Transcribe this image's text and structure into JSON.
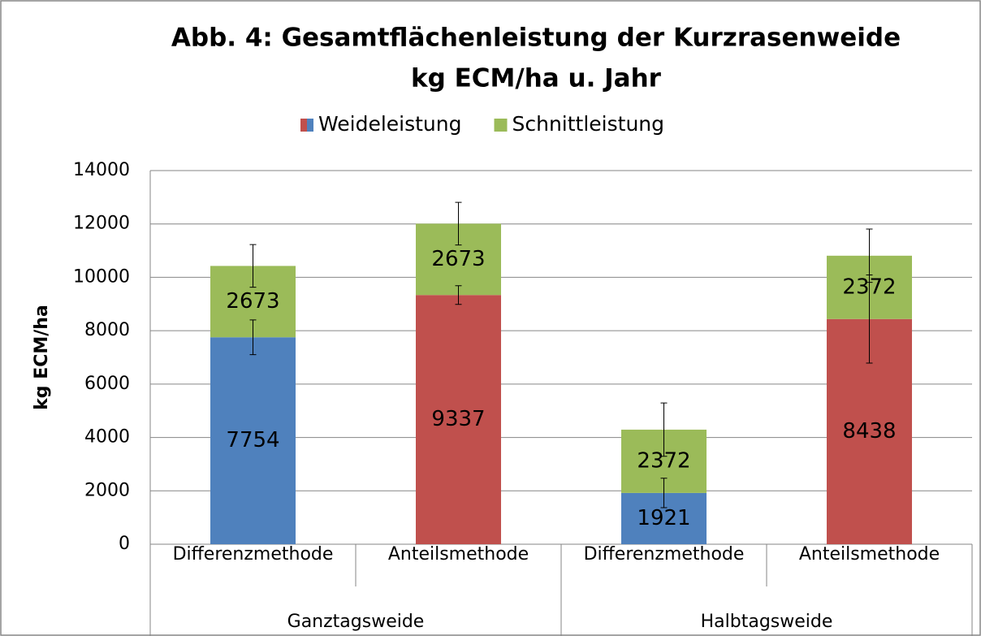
{
  "chart_data": {
    "type": "bar",
    "stacked": true,
    "title": [
      "Abb. 4: Gesamtflächenleistung der Kurzrasenweide",
      "kg ECM/ha u. Jahr"
    ],
    "ylabel": "kg ECM/ha",
    "groups": [
      {
        "name": "Ganztagsweide",
        "categories": [
          "Differenzmethode",
          "Anteilsmethode"
        ]
      },
      {
        "name": "Halbtagsweide",
        "categories": [
          "Differenzmethode",
          "Anteilsmethode"
        ]
      }
    ],
    "series": [
      {
        "name": "Weideleistung",
        "colors": [
          "#4f81bd",
          "#c0504d",
          "#4f81bd",
          "#c0504d"
        ],
        "values": [
          7754,
          9337,
          1921,
          8438
        ],
        "errors": [
          650,
          350,
          550,
          1650
        ]
      },
      {
        "name": "Schnittleistung",
        "color": "#9bbb59",
        "values": [
          2673,
          2673,
          2372,
          2372
        ],
        "errors": [
          800,
          800,
          1000,
          1000
        ]
      }
    ],
    "ylim": [
      0,
      14000
    ],
    "yticks": [
      0,
      2000,
      4000,
      6000,
      8000,
      10000,
      12000,
      14000
    ],
    "grid": true,
    "legend": "top"
  }
}
